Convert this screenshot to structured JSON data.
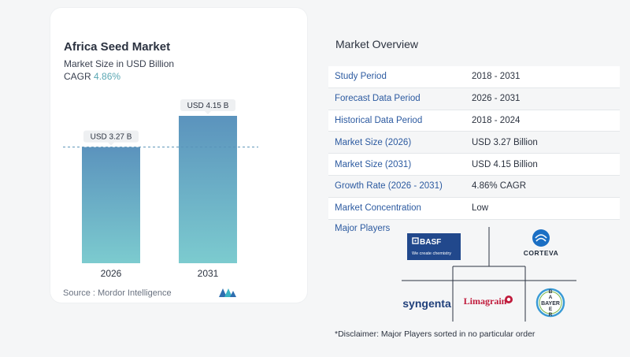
{
  "chart": {
    "title": "Africa Seed Market",
    "subtitle": "Market Size in USD Billion",
    "cagr_label": "CAGR",
    "cagr_value": "4.86%",
    "source": "Source :  Mordor Intelligence"
  },
  "chart_data": {
    "type": "bar",
    "title": "Africa Seed Market",
    "ylabel": "Market Size in USD Billion",
    "categories": [
      "2026",
      "2031"
    ],
    "values": [
      3.27,
      4.15
    ],
    "data_labels": [
      "USD 3.27 B",
      "USD 4.15 B"
    ],
    "ylim": [
      0,
      4.15
    ],
    "reference_line": 3.27
  },
  "overview": {
    "title": "Market Overview",
    "rows": [
      {
        "label": "Study Period",
        "value": "2018 - 2031"
      },
      {
        "label": "Forecast Data Period",
        "value": "2026 - 2031"
      },
      {
        "label": "Historical Data Period",
        "value": "2018 - 2024"
      },
      {
        "label": "Market Size (2026)",
        "value": "USD 3.27 Billion"
      },
      {
        "label": "Market Size (2031)",
        "value": "USD 4.15 Billion"
      },
      {
        "label": "Growth Rate (2026 - 2031)",
        "value": "4.86% CAGR"
      },
      {
        "label": "Market Concentration",
        "value": "Low"
      }
    ],
    "players_label": "Major Players",
    "players": [
      "BASF",
      "CORTEVA",
      "syngenta",
      "Limagrain",
      "BAYER"
    ],
    "basf_tagline": "We create chemistry",
    "disclaimer": "*Disclaimer: Major Players sorted in no particular order"
  },
  "colors": {
    "bar_top": "#5b93bd",
    "bar_bottom": "#7ccbcf",
    "link": "#2c5aa0",
    "accent": "#5aa7b3"
  }
}
